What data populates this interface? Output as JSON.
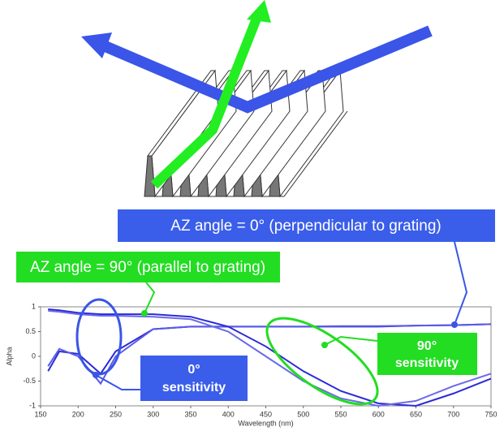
{
  "chart_data": {
    "type": "line",
    "x_label": "Wavelength (nm)",
    "y_label": "Alpha",
    "xlim": [
      150,
      750
    ],
    "xticks": [
      150,
      200,
      250,
      300,
      350,
      400,
      450,
      500,
      550,
      600,
      650,
      700,
      750
    ],
    "ylim": [
      -1,
      1
    ],
    "yticks": [
      -1,
      -0.5,
      0,
      0.5,
      1
    ],
    "x": [
      160,
      175,
      200,
      230,
      250,
      300,
      350,
      400,
      450,
      500,
      550,
      600,
      650,
      700,
      750
    ],
    "series": [
      {
        "color": "#2b2bd6",
        "values": [
          -0.3,
          0.1,
          0.05,
          -0.35,
          0.1,
          0.55,
          0.6,
          0.6,
          0.6,
          0.6,
          0.6,
          0.6,
          0.62,
          0.63,
          0.65
        ]
      },
      {
        "color": "#5a5ae6",
        "values": [
          -0.2,
          0.15,
          0.0,
          -0.55,
          0.0,
          0.55,
          0.6,
          0.6,
          0.6,
          0.6,
          0.61,
          0.61,
          0.62,
          0.63,
          0.65
        ]
      },
      {
        "color": "#2b2bd6",
        "values": [
          0.95,
          0.93,
          0.88,
          0.85,
          0.85,
          0.85,
          0.8,
          0.6,
          0.2,
          -0.3,
          -0.7,
          -0.95,
          -1.0,
          -0.75,
          -0.45
        ]
      },
      {
        "color": "#6a6aea",
        "values": [
          0.92,
          0.9,
          0.85,
          0.82,
          0.82,
          0.8,
          0.75,
          0.5,
          0.0,
          -0.5,
          -0.85,
          -1.0,
          -0.9,
          -0.6,
          -0.35
        ]
      }
    ],
    "annotations": [
      "AZ angle = 0° (perpendicular to grating)",
      "AZ angle = 90° (parallel to grating)",
      "0°",
      "sensitivity",
      "90°",
      "sensitivity"
    ]
  }
}
